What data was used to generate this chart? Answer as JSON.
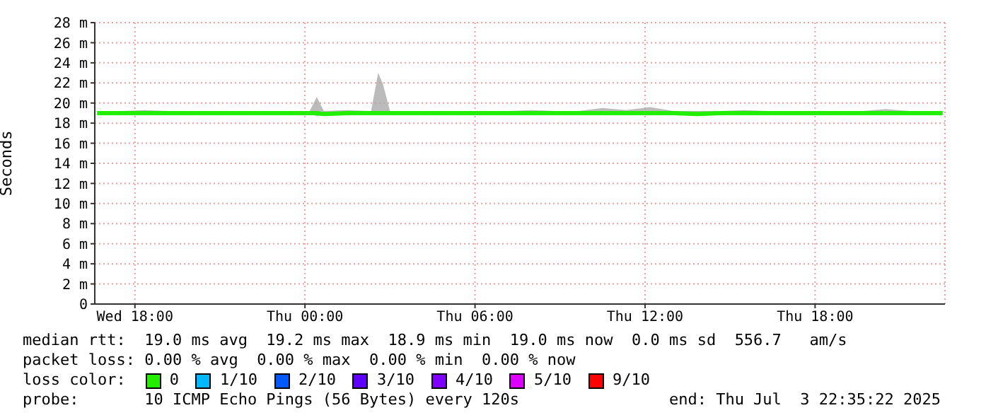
{
  "chart_data": {
    "type": "line",
    "ylabel": "Seconds",
    "legend_title": "loss color:",
    "legend": "bottom",
    "grid": true,
    "marker": "none",
    "line_style": "solid",
    "x": [
      "2025-07-02T16:40",
      "2025-07-02T17:30",
      "2025-07-02T18:20",
      "2025-07-02T19:10",
      "2025-07-02T20:00",
      "2025-07-02T20:50",
      "2025-07-02T21:40",
      "2025-07-02T22:30",
      "2025-07-02T23:20",
      "2025-07-03T00:10",
      "2025-07-03T00:25",
      "2025-07-03T00:40",
      "2025-07-03T01:30",
      "2025-07-03T02:20",
      "2025-07-03T02:35",
      "2025-07-03T02:45",
      "2025-07-03T03:00",
      "2025-07-03T03:50",
      "2025-07-03T04:40",
      "2025-07-03T05:30",
      "2025-07-03T06:20",
      "2025-07-03T07:10",
      "2025-07-03T08:00",
      "2025-07-03T08:50",
      "2025-07-03T09:40",
      "2025-07-03T10:30",
      "2025-07-03T11:20",
      "2025-07-03T12:10",
      "2025-07-03T13:00",
      "2025-07-03T13:50",
      "2025-07-03T14:40",
      "2025-07-03T15:30",
      "2025-07-03T16:20",
      "2025-07-03T17:10",
      "2025-07-03T18:00",
      "2025-07-03T18:50",
      "2025-07-03T19:40",
      "2025-07-03T20:30",
      "2025-07-03T21:20",
      "2025-07-03T22:30"
    ],
    "xlim": [
      "2025-07-02T16:35",
      "2025-07-03T22:35"
    ],
    "xticks": [
      {
        "value": "2025-07-02T18:00",
        "label": "Wed 18:00"
      },
      {
        "value": "2025-07-03T00:00",
        "label": "Thu 00:00"
      },
      {
        "value": "2025-07-03T06:00",
        "label": "Thu 06:00"
      },
      {
        "value": "2025-07-03T12:00",
        "label": "Thu 12:00"
      },
      {
        "value": "2025-07-03T18:00",
        "label": "Thu 18:00"
      }
    ],
    "ylim": [
      0,
      28
    ],
    "yticks": [
      0,
      {
        "value": 2,
        "label": "2 m"
      },
      {
        "value": 4,
        "label": "4 m"
      },
      {
        "value": 6,
        "label": "6 m"
      },
      {
        "value": 8,
        "label": "8 m"
      },
      {
        "value": 10,
        "label": "10 m"
      },
      {
        "value": 12,
        "label": "12 m"
      },
      {
        "value": 14,
        "label": "14 m"
      },
      {
        "value": 16,
        "label": "16 m"
      },
      {
        "value": 18,
        "label": "18 m"
      },
      {
        "value": 20,
        "label": "20 m"
      },
      {
        "value": 22,
        "label": "22 m"
      },
      {
        "value": 24,
        "label": "24 m"
      },
      {
        "value": 26,
        "label": "26 m"
      },
      {
        "value": 28,
        "label": "28 m"
      }
    ],
    "series": [
      {
        "name": "0",
        "color": "#22ee00",
        "values": [
          19.0,
          19.0,
          19.0,
          19.0,
          19.0,
          19.0,
          19.0,
          19.0,
          19.0,
          19.0,
          19.0,
          18.9,
          19.0,
          19.0,
          19.0,
          19.0,
          19.0,
          19.0,
          19.0,
          19.0,
          19.0,
          19.0,
          19.0,
          19.0,
          19.0,
          19.0,
          19.0,
          19.0,
          19.0,
          18.9,
          19.0,
          19.0,
          19.0,
          19.0,
          19.0,
          19.0,
          19.0,
          19.0,
          19.0,
          19.0
        ],
        "lower": [
          18.9,
          18.9,
          18.9,
          18.9,
          18.9,
          18.9,
          18.9,
          18.9,
          18.9,
          18.9,
          18.7,
          18.8,
          18.9,
          18.9,
          18.9,
          18.9,
          18.9,
          18.9,
          18.9,
          18.9,
          18.9,
          18.9,
          18.9,
          18.9,
          18.9,
          18.9,
          18.9,
          18.9,
          18.9,
          18.8,
          18.9,
          18.9,
          18.9,
          18.9,
          18.9,
          18.9,
          18.9,
          18.9,
          18.9,
          18.9
        ],
        "upper": [
          19.2,
          19.2,
          19.3,
          19.2,
          19.2,
          19.2,
          19.2,
          19.2,
          19.2,
          19.2,
          20.6,
          19.2,
          19.3,
          19.2,
          23.0,
          21.9,
          19.2,
          19.2,
          19.2,
          19.2,
          19.2,
          19.2,
          19.3,
          19.2,
          19.2,
          19.5,
          19.3,
          19.6,
          19.2,
          19.2,
          19.2,
          19.3,
          19.2,
          19.2,
          19.2,
          19.2,
          19.2,
          19.4,
          19.2,
          19.2
        ]
      },
      {
        "name": "1/10",
        "color": "#00b8ff",
        "values": [
          null,
          null,
          null,
          null,
          null,
          null,
          null,
          null,
          null,
          null,
          null,
          null,
          null,
          null,
          null,
          null,
          null,
          null,
          null,
          null,
          null,
          null,
          null,
          null,
          null,
          null,
          null,
          null,
          null,
          null,
          null,
          null,
          null,
          null,
          null,
          null,
          null,
          null,
          null,
          null
        ]
      },
      {
        "name": "2/10",
        "color": "#0059ff",
        "values": [
          null,
          null,
          null,
          null,
          null,
          null,
          null,
          null,
          null,
          null,
          null,
          null,
          null,
          null,
          null,
          null,
          null,
          null,
          null,
          null,
          null,
          null,
          null,
          null,
          null,
          null,
          null,
          null,
          null,
          null,
          null,
          null,
          null,
          null,
          null,
          null,
          null,
          null,
          null,
          null
        ]
      },
      {
        "name": "3/10",
        "color": "#5e00ff",
        "values": [
          null,
          null,
          null,
          null,
          null,
          null,
          null,
          null,
          null,
          null,
          null,
          null,
          null,
          null,
          null,
          null,
          null,
          null,
          null,
          null,
          null,
          null,
          null,
          null,
          null,
          null,
          null,
          null,
          null,
          null,
          null,
          null,
          null,
          null,
          null,
          null,
          null,
          null,
          null,
          null
        ]
      },
      {
        "name": "4/10",
        "color": "#7e00ff",
        "values": [
          null,
          null,
          null,
          null,
          null,
          null,
          null,
          null,
          null,
          null,
          null,
          null,
          null,
          null,
          null,
          null,
          null,
          null,
          null,
          null,
          null,
          null,
          null,
          null,
          null,
          null,
          null,
          null,
          null,
          null,
          null,
          null,
          null,
          null,
          null,
          null,
          null,
          null,
          null,
          null
        ]
      },
      {
        "name": "5/10",
        "color": "#dd00ff",
        "values": [
          null,
          null,
          null,
          null,
          null,
          null,
          null,
          null,
          null,
          null,
          null,
          null,
          null,
          null,
          null,
          null,
          null,
          null,
          null,
          null,
          null,
          null,
          null,
          null,
          null,
          null,
          null,
          null,
          null,
          null,
          null,
          null,
          null,
          null,
          null,
          null,
          null,
          null,
          null,
          null
        ]
      },
      {
        "name": "9/10",
        "color": "#ff0000",
        "values": [
          null,
          null,
          null,
          null,
          null,
          null,
          null,
          null,
          null,
          null,
          null,
          null,
          null,
          null,
          null,
          null,
          null,
          null,
          null,
          null,
          null,
          null,
          null,
          null,
          null,
          null,
          null,
          null,
          null,
          null,
          null,
          null,
          null,
          null,
          null,
          null,
          null,
          null,
          null,
          null
        ]
      }
    ],
    "annotations": [
      "median rtt:  19.0 ms avg  19.2 ms max  18.9 ms min  19.0 ms now  0.0 ms sd  556.7   am/s",
      "packet loss: 0.00 % avg  0.00 % max  0.00 % min  0.00 % now",
      "probe:       10 ICMP Echo Pings (56 Bytes) every 120s                end: Thu Jul  3 22:35:22 2025"
    ]
  }
}
